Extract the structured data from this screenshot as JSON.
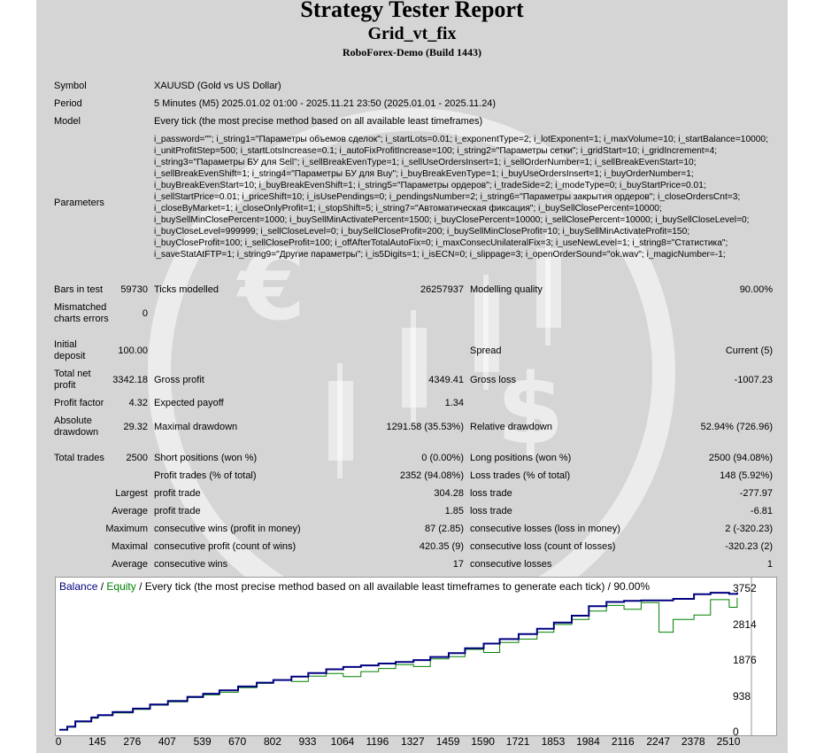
{
  "header": {
    "title": "Strategy Tester Report",
    "expert": "Grid_vt_fix",
    "broker": "RoboForex-Demo (Build 1443)"
  },
  "info": {
    "symbol_label": "Symbol",
    "symbol_value": "XAUUSD (Gold vs US Dollar)",
    "period_label": "Period",
    "period_value": "5 Minutes (M5) 2025.01.02 01:00 - 2025.11.21 23:50 (2025.01.01 - 2025.11.24)",
    "model_label": "Model",
    "model_value": "Every tick (the most precise method based on all available least timeframes)",
    "parameters_label": "Parameters",
    "parameters_value": "i_password=\"\"; i_string1=\"Параметры объемов сделок\"; i_startLots=0.01; i_exponentType=2; i_lotExponent=1; i_maxVolume=10; i_startBalance=10000; i_unitProfitStep=500; i_startLotsIncrease=0.1; i_autoFixProfitIncrease=100; i_string2=\"Параметры сетки\"; i_gridStart=10; i_gridIncrement=4; i_string3=\"Параметры БУ для Sell\"; i_sellBreakEvenType=1; i_sellUseOrdersInsert=1; i_sellOrderNumber=1; i_sellBreakEvenStart=10; i_sellBreakEvenShift=1; i_string4=\"Параметры БУ для Buy\"; i_buyBreakEvenType=1; i_buyUseOrdersInsert=1; i_buyOrderNumber=1; i_buyBreakEvenStart=10; i_buyBreakEvenShift=1; i_string5=\"Параметры ордеров\"; i_tradeSide=2; i_modeType=0; i_buyStartPrice=0.01; i_sellStartPrice=0.01; i_priceShift=10; i_isUsePendings=0; i_pendingsNumber=2; i_string6=\"Параметры закрытия ордеров\"; i_closeOrdersCnt=3; i_closeByMarket=1; i_closeOnlyProfit=1; i_stopShift=5; i_string7=\"Автоматическая фиксация\"; i_buySellClosePercent=10000; i_buySellMinClosePercent=1000; i_buySellMinActivatePercent=1500; i_buyClosePercent=10000; i_sellClosePercent=10000; i_buySellCloseLevel=0; i_buyCloseLevel=999999; i_sellCloseLevel=0; i_buySellCloseProfit=200; i_buySellMinCloseProfit=10; i_buySellMinActivateProfit=150; i_buyCloseProfit=100; i_sellCloseProfit=100; i_offAfterTotalAutoFix=0; i_maxConsecUnilateralFix=3; i_useNewLevel=1; i_string8=\"Статистика\"; i_saveStatAtFTP=1; i_string9=\"Другие параметры\"; i_is5Digits=1; i_isECN=0; i_slippage=3; i_openOrderSound=\"ok.wav\"; i_magicNumber=-1;"
  },
  "stats": {
    "bars_label": "Bars in test",
    "bars_value": "59730",
    "ticks_label": "Ticks modelled",
    "ticks_value": "26257937",
    "quality_label": "Modelling quality",
    "quality_value": "90.00%",
    "mismatch_label": "Mismatched charts errors",
    "mismatch_value": "0",
    "deposit_label": "Initial deposit",
    "deposit_value": "100.00",
    "spread_label": "Spread",
    "spread_value": "Current (5)",
    "netprofit_label": "Total net profit",
    "netprofit_value": "3342.18",
    "grossprofit_label": "Gross profit",
    "grossprofit_value": "4349.41",
    "grossloss_label": "Gross loss",
    "grossloss_value": "-1007.23",
    "pf_label": "Profit factor",
    "pf_value": "4.32",
    "payoff_label": "Expected payoff",
    "payoff_value": "1.34",
    "absdd_label": "Absolute drawdown",
    "absdd_value": "29.32",
    "maxdd_label": "Maximal drawdown",
    "maxdd_value": "1291.58 (35.53%)",
    "reldd_label": "Relative drawdown",
    "reldd_value": "52.94% (726.96)",
    "trades_label": "Total trades",
    "trades_value": "2500",
    "short_label": "Short positions (won %)",
    "short_value": "0 (0.00%)",
    "long_label": "Long positions (won %)",
    "long_value": "2500 (94.08%)",
    "profittrades_label": "Profit trades (% of total)",
    "profittrades_value": "2352 (94.08%)",
    "losstrades_label": "Loss trades (% of total)",
    "losstrades_value": "148 (5.92%)",
    "largest_label": "Largest",
    "largest_pt_label": "profit trade",
    "largest_pt_value": "304.28",
    "largest_lt_label": "loss trade",
    "largest_lt_value": "-277.97",
    "average_label": "Average",
    "average_pt_label": "profit trade",
    "average_pt_value": "1.85",
    "average_lt_label": "loss trade",
    "average_lt_value": "-6.81",
    "maximum_label": "Maximum",
    "max_cw_label": "consecutive wins (profit in money)",
    "max_cw_value": "87 (2.85)",
    "max_cl_label": "consecutive losses (loss in money)",
    "max_cl_value": "2 (-320.23)",
    "maximal_label": "Maximal",
    "mx_cp_label": "consecutive profit (count of wins)",
    "mx_cp_value": "420.35 (9)",
    "mx_cl_label": "consecutive loss (count of losses)",
    "mx_cl_value": "-320.23 (2)",
    "avg2_label": "Average",
    "avg_cw_label": "consecutive wins",
    "avg_cw_value": "17",
    "avg_cl_label": "consecutive losses",
    "avg_cl_value": "1"
  },
  "chart_data": {
    "type": "line",
    "caption_balance": "Balance",
    "caption_sep": " / ",
    "caption_equity": "Equity",
    "caption_rest": " / Every tick (the most precise method based on all available least timeframes to generate each tick) / 90.00%",
    "y_ticks": [
      "3752",
      "2814",
      "1876",
      "938",
      "0"
    ],
    "x_ticks": [
      "0",
      "145",
      "276",
      "407",
      "539",
      "670",
      "802",
      "933",
      "1064",
      "1196",
      "1327",
      "1459",
      "1590",
      "1721",
      "1853",
      "1984",
      "2116",
      "2247",
      "2378",
      "2510"
    ],
    "ylim": [
      0,
      3752
    ],
    "xlim": [
      0,
      2580
    ],
    "balance_color": "#000080",
    "equity_color": "#008000",
    "series": [
      {
        "name": "Balance",
        "x": [
          0,
          30,
          60,
          120,
          145,
          200,
          276,
          340,
          407,
          480,
          539,
          600,
          670,
          740,
          802,
          870,
          933,
          1000,
          1064,
          1130,
          1196,
          1260,
          1327,
          1390,
          1459,
          1520,
          1590,
          1650,
          1721,
          1790,
          1853,
          1920,
          1984,
          2050,
          2116,
          2180,
          2247,
          2300,
          2378,
          2440,
          2510,
          2540
        ],
        "values": [
          100,
          180,
          320,
          420,
          480,
          560,
          650,
          760,
          850,
          960,
          1040,
          1130,
          1230,
          1330,
          1400,
          1490,
          1580,
          1680,
          1740,
          1780,
          1830,
          1870,
          1920,
          2000,
          2100,
          2230,
          2350,
          2470,
          2600,
          2740,
          2900,
          3080,
          3330,
          3440,
          3470,
          3480,
          3480,
          3520,
          3640,
          3680,
          3650,
          3690
        ]
      },
      {
        "name": "Equity",
        "x": [
          0,
          30,
          60,
          120,
          145,
          200,
          276,
          340,
          407,
          480,
          539,
          600,
          670,
          740,
          802,
          870,
          933,
          1000,
          1064,
          1130,
          1196,
          1260,
          1327,
          1390,
          1459,
          1520,
          1590,
          1650,
          1721,
          1790,
          1853,
          1920,
          1984,
          2050,
          2116,
          2180,
          2247,
          2300,
          2378,
          2440,
          2510,
          2540
        ],
        "values": [
          100,
          170,
          300,
          400,
          470,
          540,
          630,
          740,
          830,
          940,
          1010,
          1080,
          1200,
          1310,
          1390,
          1360,
          1500,
          1570,
          1490,
          1620,
          1700,
          1800,
          1750,
          1950,
          2010,
          2200,
          2120,
          2380,
          2470,
          2650,
          2850,
          2980,
          3200,
          3350,
          3250,
          3420,
          2650,
          2980,
          3100,
          3500,
          3300,
          3550
        ]
      }
    ]
  }
}
